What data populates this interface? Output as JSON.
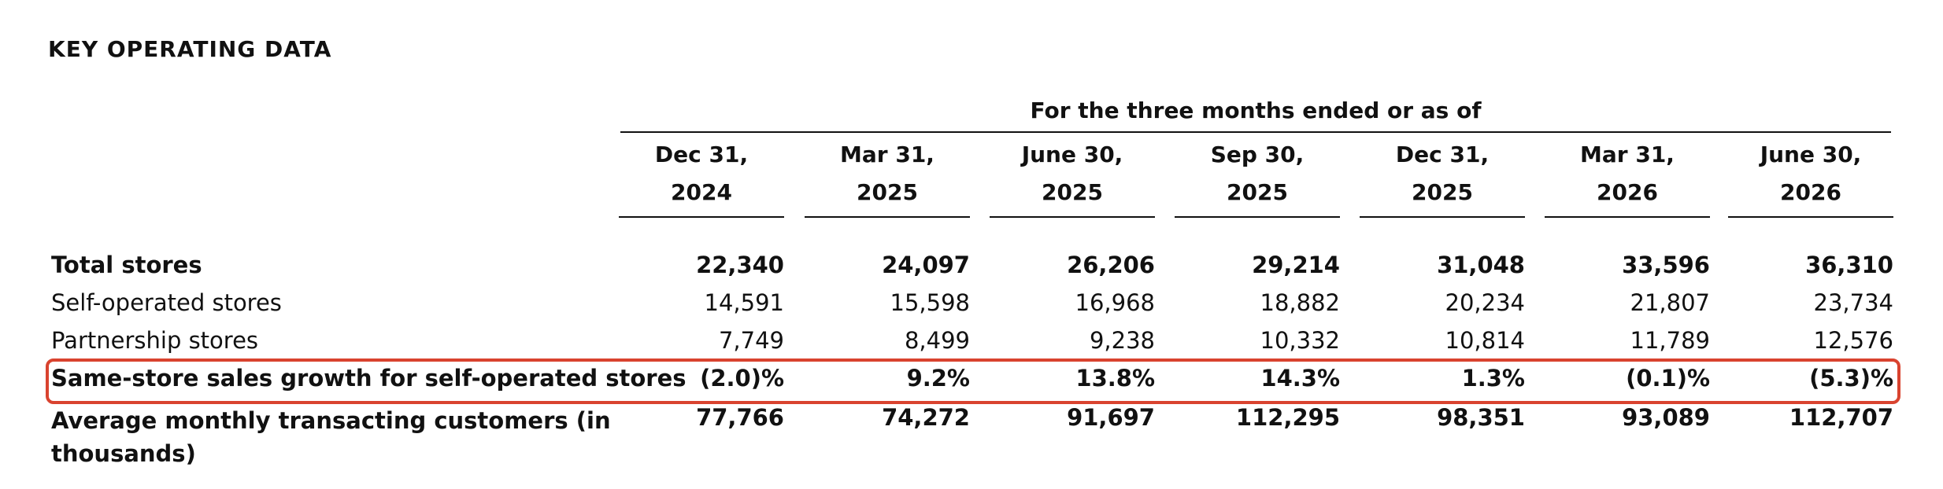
{
  "section_title": "KEY OPERATING DATA",
  "period_header": "For the three months ended or as of",
  "columns": [
    {
      "line1": "Dec 31,",
      "line2": "2024"
    },
    {
      "line1": "Mar 31,",
      "line2": "2025"
    },
    {
      "line1": "June 30,",
      "line2": "2025"
    },
    {
      "line1": "Sep 30,",
      "line2": "2025"
    },
    {
      "line1": "Dec 31,",
      "line2": "2025"
    },
    {
      "line1": "Mar 31,",
      "line2": "2026"
    },
    {
      "line1": "June 30,",
      "line2": "2026"
    }
  ],
  "rows": [
    {
      "label": "Total stores",
      "bold": true,
      "values": [
        "22,340",
        "24,097",
        "26,206",
        "29,214",
        "31,048",
        "33,596",
        "36,310"
      ]
    },
    {
      "label": "Self-operated stores",
      "bold": false,
      "values": [
        "14,591",
        "15,598",
        "16,968",
        "18,882",
        "20,234",
        "21,807",
        "23,734"
      ]
    },
    {
      "label": "Partnership stores",
      "bold": false,
      "values": [
        "7,749",
        "8,499",
        "9,238",
        "10,332",
        "10,814",
        "11,789",
        "12,576"
      ]
    },
    {
      "label": "Same-store sales growth for self-operated stores",
      "bold": true,
      "highlighted": true,
      "values": [
        "(2.0)%",
        "9.2%",
        "13.8%",
        "14.3%",
        "1.3%",
        "(0.1)%",
        "(5.3)%"
      ]
    },
    {
      "label": "Average monthly transacting customers (in thousands)",
      "bold": true,
      "values": [
        "77,766",
        "74,272",
        "91,697",
        "112,295",
        "98,351",
        "93,089",
        "112,707"
      ]
    }
  ],
  "colors": {
    "highlight_border": "#d9432f",
    "text": "#111111"
  }
}
